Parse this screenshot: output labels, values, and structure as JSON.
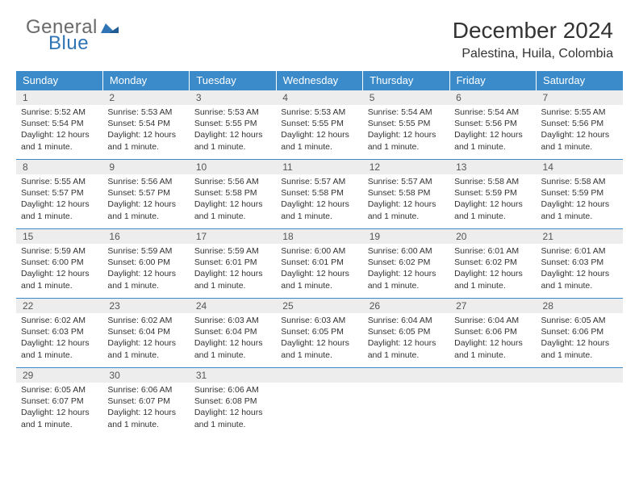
{
  "logo": {
    "text1": "General",
    "text2": "Blue",
    "shape_color": "#2f74b5"
  },
  "title": "December 2024",
  "location": "Palestina, Huila, Colombia",
  "colors": {
    "header_bg": "#3b8bca",
    "header_text": "#ffffff",
    "daynum_bg": "#ededed",
    "border": "#3b8bca",
    "text": "#333333"
  },
  "typography": {
    "title_fontsize": 28,
    "location_fontsize": 16,
    "dayheader_fontsize": 13,
    "body_fontsize": 10.5
  },
  "day_headers": [
    "Sunday",
    "Monday",
    "Tuesday",
    "Wednesday",
    "Thursday",
    "Friday",
    "Saturday"
  ],
  "weeks": [
    [
      {
        "n": "1",
        "sr": "5:52 AM",
        "ss": "5:54 PM",
        "dl": "12 hours and 1 minute."
      },
      {
        "n": "2",
        "sr": "5:53 AM",
        "ss": "5:54 PM",
        "dl": "12 hours and 1 minute."
      },
      {
        "n": "3",
        "sr": "5:53 AM",
        "ss": "5:55 PM",
        "dl": "12 hours and 1 minute."
      },
      {
        "n": "4",
        "sr": "5:53 AM",
        "ss": "5:55 PM",
        "dl": "12 hours and 1 minute."
      },
      {
        "n": "5",
        "sr": "5:54 AM",
        "ss": "5:55 PM",
        "dl": "12 hours and 1 minute."
      },
      {
        "n": "6",
        "sr": "5:54 AM",
        "ss": "5:56 PM",
        "dl": "12 hours and 1 minute."
      },
      {
        "n": "7",
        "sr": "5:55 AM",
        "ss": "5:56 PM",
        "dl": "12 hours and 1 minute."
      }
    ],
    [
      {
        "n": "8",
        "sr": "5:55 AM",
        "ss": "5:57 PM",
        "dl": "12 hours and 1 minute."
      },
      {
        "n": "9",
        "sr": "5:56 AM",
        "ss": "5:57 PM",
        "dl": "12 hours and 1 minute."
      },
      {
        "n": "10",
        "sr": "5:56 AM",
        "ss": "5:58 PM",
        "dl": "12 hours and 1 minute."
      },
      {
        "n": "11",
        "sr": "5:57 AM",
        "ss": "5:58 PM",
        "dl": "12 hours and 1 minute."
      },
      {
        "n": "12",
        "sr": "5:57 AM",
        "ss": "5:58 PM",
        "dl": "12 hours and 1 minute."
      },
      {
        "n": "13",
        "sr": "5:58 AM",
        "ss": "5:59 PM",
        "dl": "12 hours and 1 minute."
      },
      {
        "n": "14",
        "sr": "5:58 AM",
        "ss": "5:59 PM",
        "dl": "12 hours and 1 minute."
      }
    ],
    [
      {
        "n": "15",
        "sr": "5:59 AM",
        "ss": "6:00 PM",
        "dl": "12 hours and 1 minute."
      },
      {
        "n": "16",
        "sr": "5:59 AM",
        "ss": "6:00 PM",
        "dl": "12 hours and 1 minute."
      },
      {
        "n": "17",
        "sr": "5:59 AM",
        "ss": "6:01 PM",
        "dl": "12 hours and 1 minute."
      },
      {
        "n": "18",
        "sr": "6:00 AM",
        "ss": "6:01 PM",
        "dl": "12 hours and 1 minute."
      },
      {
        "n": "19",
        "sr": "6:00 AM",
        "ss": "6:02 PM",
        "dl": "12 hours and 1 minute."
      },
      {
        "n": "20",
        "sr": "6:01 AM",
        "ss": "6:02 PM",
        "dl": "12 hours and 1 minute."
      },
      {
        "n": "21",
        "sr": "6:01 AM",
        "ss": "6:03 PM",
        "dl": "12 hours and 1 minute."
      }
    ],
    [
      {
        "n": "22",
        "sr": "6:02 AM",
        "ss": "6:03 PM",
        "dl": "12 hours and 1 minute."
      },
      {
        "n": "23",
        "sr": "6:02 AM",
        "ss": "6:04 PM",
        "dl": "12 hours and 1 minute."
      },
      {
        "n": "24",
        "sr": "6:03 AM",
        "ss": "6:04 PM",
        "dl": "12 hours and 1 minute."
      },
      {
        "n": "25",
        "sr": "6:03 AM",
        "ss": "6:05 PM",
        "dl": "12 hours and 1 minute."
      },
      {
        "n": "26",
        "sr": "6:04 AM",
        "ss": "6:05 PM",
        "dl": "12 hours and 1 minute."
      },
      {
        "n": "27",
        "sr": "6:04 AM",
        "ss": "6:06 PM",
        "dl": "12 hours and 1 minute."
      },
      {
        "n": "28",
        "sr": "6:05 AM",
        "ss": "6:06 PM",
        "dl": "12 hours and 1 minute."
      }
    ],
    [
      {
        "n": "29",
        "sr": "6:05 AM",
        "ss": "6:07 PM",
        "dl": "12 hours and 1 minute."
      },
      {
        "n": "30",
        "sr": "6:06 AM",
        "ss": "6:07 PM",
        "dl": "12 hours and 1 minute."
      },
      {
        "n": "31",
        "sr": "6:06 AM",
        "ss": "6:08 PM",
        "dl": "12 hours and 1 minute."
      },
      null,
      null,
      null,
      null
    ]
  ],
  "labels": {
    "sunrise": "Sunrise: ",
    "sunset": "Sunset: ",
    "daylight": "Daylight: "
  }
}
